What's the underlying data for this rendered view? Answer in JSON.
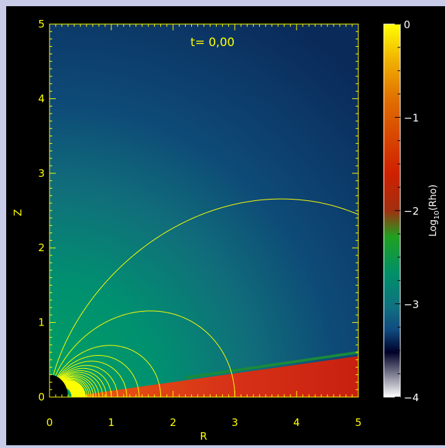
{
  "chart_data": {
    "type": "heatmap",
    "annotation": "t= 0,00",
    "xlabel": "R",
    "ylabel": "Z",
    "xlim": [
      0,
      5
    ],
    "ylim": [
      0,
      5
    ],
    "xticks": [
      "0",
      "1",
      "2",
      "3",
      "4",
      "5"
    ],
    "yticks": [
      "0",
      "1",
      "2",
      "3",
      "4",
      "5"
    ],
    "colorbar": {
      "label_main": "Log",
      "label_sub": "10",
      "label_rest": "(Rho)",
      "range": [
        -4,
        0
      ],
      "ticks": [
        "0",
        "−1",
        "−2",
        "−3",
        "−4"
      ]
    },
    "field_lines": {
      "type": "dipole",
      "r_sin2_constants": [
        6.9,
        3.0,
        1.8,
        1.45,
        1.25,
        1.1,
        1.0,
        0.92,
        0.86,
        0.8,
        0.75,
        0.71,
        0.67,
        0.64,
        0.61
      ]
    },
    "disk": {
      "inner_radius": 0.45,
      "upper_edge_z_at_R5": 0.55
    },
    "colors": {
      "frame": "#000000",
      "axis": "#ffff00",
      "field_line": "#ffff00",
      "disk": "#d02810",
      "star": "#000000"
    }
  }
}
